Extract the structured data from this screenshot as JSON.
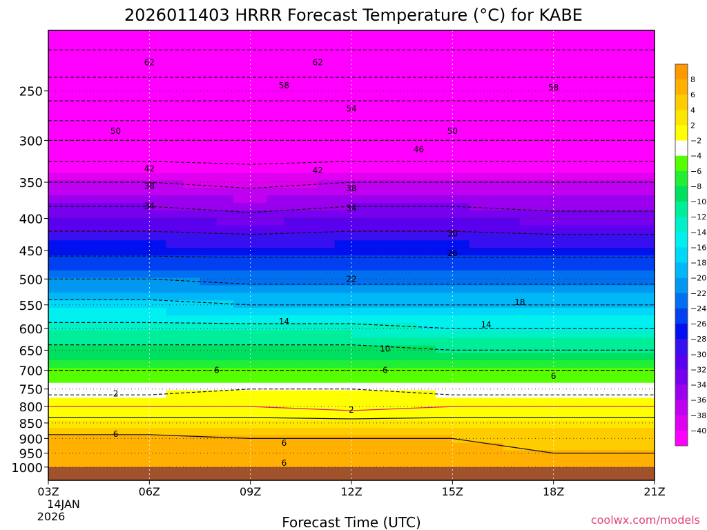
{
  "chart_data": {
    "type": "heatmap",
    "title": "2026011403 HRRR Forecast Temperature (°C) for KABE",
    "xlabel": "Forecast Time (UTC)",
    "ylabel": "",
    "credit": "coolwx.com/models",
    "x_ticks": [
      "03Z",
      "06Z",
      "09Z",
      "12Z",
      "15Z",
      "18Z",
      "21Z"
    ],
    "x_tick_hours": [
      3,
      6,
      9,
      12,
      15,
      18,
      21
    ],
    "x_start_date": [
      "14JAN",
      "2026"
    ],
    "xlim": [
      3,
      21
    ],
    "y_ticks": [
      250,
      300,
      350,
      400,
      450,
      500,
      550,
      600,
      650,
      700,
      750,
      800,
      850,
      900,
      950,
      1000
    ],
    "y_scale": "log",
    "ylim": [
      1050,
      200
    ],
    "y_unit": "hPa",
    "grid": true,
    "ground_color": "#a0522d",
    "colorbar": {
      "placement": "right",
      "levels": [
        8,
        6,
        4,
        2,
        -2,
        -4,
        -6,
        -8,
        -10,
        -12,
        -14,
        -16,
        -18,
        -20,
        -22,
        -24,
        -26,
        -28,
        -30,
        -32,
        -34,
        -36,
        -38,
        -40
      ],
      "colors": [
        "#ff9900",
        "#ffb000",
        "#ffcc00",
        "#ffe600",
        "#ffff00",
        "#ffffff",
        "#55ff00",
        "#22ee33",
        "#00e060",
        "#00ee99",
        "#00f0c8",
        "#00f0f0",
        "#00d8f8",
        "#00b8f8",
        "#0098f0",
        "#0070f0",
        "#0040f0",
        "#0010f0",
        "#3810f0",
        "#5a00ee",
        "#7800ee",
        "#9a00ee",
        "#c000f0",
        "#e000f0",
        "#ff00ff"
      ]
    },
    "pressure_levels": [
      1000,
      950,
      900,
      850,
      800,
      750,
      700,
      650,
      600,
      550,
      500,
      450,
      400,
      350,
      300,
      250,
      215
    ],
    "series": [
      {
        "x": 3,
        "values": [
          7,
          8,
          7,
          3,
          0,
          -3,
          -6,
          -9,
          -13,
          -17,
          -22,
          -27,
          -32,
          -38,
          -46,
          -56,
          -62
        ]
      },
      {
        "x": 6,
        "values": [
          7,
          8,
          7,
          3,
          0,
          -3,
          -6,
          -9,
          -13,
          -17,
          -22,
          -27,
          -32,
          -38,
          -46,
          -56,
          -62
        ]
      },
      {
        "x": 9,
        "values": [
          7,
          7,
          6,
          3,
          0,
          -2,
          -6,
          -9,
          -13,
          -18,
          -23,
          -27,
          -33,
          -39,
          -46,
          -56,
          -62
        ]
      },
      {
        "x": 12,
        "values": [
          7,
          7,
          6,
          3,
          -1,
          -2,
          -6,
          -9,
          -13,
          -18,
          -23,
          -27,
          -32,
          -38,
          -46,
          -56,
          -62
        ]
      },
      {
        "x": 15,
        "values": [
          7,
          7,
          6,
          3,
          0,
          -3,
          -6,
          -10,
          -14,
          -18,
          -23,
          -27,
          -32,
          -38,
          -46,
          -56,
          -62
        ]
      },
      {
        "x": 18,
        "values": [
          7,
          6,
          5,
          3,
          0,
          -3,
          -6,
          -10,
          -14,
          -18,
          -23,
          -27,
          -33,
          -38,
          -46,
          -56,
          -62
        ]
      },
      {
        "x": 21,
        "values": [
          7,
          6,
          5,
          3,
          0,
          -3,
          -6,
          -10,
          -14,
          -18,
          -23,
          -27,
          -33,
          -38,
          -46,
          -56,
          -62
        ]
      }
    ],
    "contour_labels": [
      {
        "text": "62",
        "x": 6,
        "p": 225
      },
      {
        "text": "62",
        "x": 11,
        "p": 225
      },
      {
        "text": "58",
        "x": 10,
        "p": 245
      },
      {
        "text": "58",
        "x": 18,
        "p": 247
      },
      {
        "text": "54",
        "x": 12,
        "p": 267
      },
      {
        "text": "50",
        "x": 5,
        "p": 290
      },
      {
        "text": "50",
        "x": 15,
        "p": 290
      },
      {
        "text": "46",
        "x": 14,
        "p": 310
      },
      {
        "text": "42",
        "x": 6,
        "p": 333
      },
      {
        "text": "42",
        "x": 11,
        "p": 335
      },
      {
        "text": "38",
        "x": 6,
        "p": 355
      },
      {
        "text": "38",
        "x": 12,
        "p": 358
      },
      {
        "text": "34",
        "x": 6,
        "p": 382
      },
      {
        "text": "34",
        "x": 12,
        "p": 385
      },
      {
        "text": "30",
        "x": 15,
        "p": 423
      },
      {
        "text": "26",
        "x": 15,
        "p": 455
      },
      {
        "text": "22",
        "x": 12,
        "p": 500
      },
      {
        "text": "18",
        "x": 17,
        "p": 545
      },
      {
        "text": "14",
        "x": 10,
        "p": 585
      },
      {
        "text": "14",
        "x": 16,
        "p": 592
      },
      {
        "text": "10",
        "x": 13,
        "p": 647
      },
      {
        "text": "6",
        "x": 8,
        "p": 700
      },
      {
        "text": "6",
        "x": 13,
        "p": 700
      },
      {
        "text": "6",
        "x": 18,
        "p": 715
      },
      {
        "text": "2",
        "x": 5,
        "p": 763
      },
      {
        "text": "2",
        "x": 12,
        "p": 810
      },
      {
        "text": "6",
        "x": 5,
        "p": 885
      },
      {
        "text": "6",
        "x": 10,
        "p": 915
      },
      {
        "text": "6",
        "x": 10,
        "p": 985
      }
    ]
  }
}
